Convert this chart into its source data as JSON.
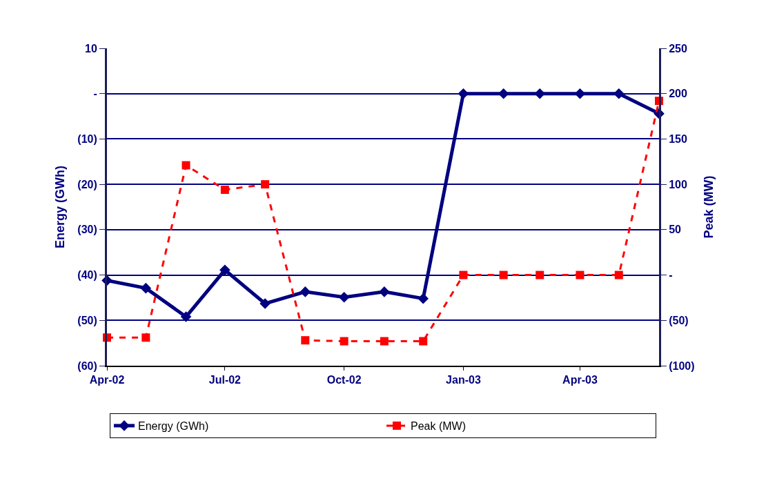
{
  "chart_data": {
    "type": "line",
    "ylabel": "Energy (GWh)",
    "y2label": "Peak (MW)",
    "x": [
      "2002-04",
      "2002-05",
      "2002-06",
      "2002-07",
      "2002-08",
      "2002-09",
      "2002-10",
      "2002-11",
      "2002-12",
      "2003-01",
      "2003-02",
      "2003-03",
      "2003-04",
      "2003-05",
      "2003-06"
    ],
    "series": [
      {
        "name": "Energy (GWh)",
        "color": "#000080",
        "marker": "diamond",
        "line_style": "solid",
        "values": [
          -41.2,
          -42.9,
          -49.2,
          -38.9,
          -46.3,
          -43.7,
          -44.9,
          -43.7,
          -45.2,
          0,
          0,
          0,
          0,
          0,
          -4.4
        ]
      },
      {
        "name": "Peak (MW)",
        "color": "#ff0000",
        "marker": "square",
        "line_style": "dashed",
        "axis": "y2",
        "values": [
          -69,
          -69,
          121,
          94,
          100,
          -72,
          -73,
          -73,
          -73,
          0,
          0,
          0,
          0,
          0,
          192
        ]
      }
    ],
    "xlim": [
      "2002-04",
      "2003-06"
    ],
    "xticks": [
      {
        "value": "2002-04",
        "label": "Apr-02"
      },
      {
        "value": "2002-07",
        "label": "Jul-02"
      },
      {
        "value": "2002-10",
        "label": "Oct-02"
      },
      {
        "value": "2003-01",
        "label": "Jan-03"
      },
      {
        "value": "2003-04",
        "label": "Apr-03"
      }
    ],
    "ylim": [
      -60,
      10
    ],
    "yticks": [
      10,
      {
        "value": 0,
        "label": "-"
      },
      {
        "value": -10,
        "label": "(10)"
      },
      {
        "value": -20,
        "label": "(20)"
      },
      {
        "value": -30,
        "label": "(30)"
      },
      {
        "value": -40,
        "label": "(40)"
      },
      {
        "value": -50,
        "label": "(50)"
      },
      {
        "value": -60,
        "label": "(60)"
      }
    ],
    "y2lim": [
      -100,
      250
    ],
    "y2ticks": [
      250,
      200,
      150,
      100,
      50,
      {
        "value": 0,
        "label": "-"
      },
      {
        "value": -50,
        "label": "(50)"
      },
      {
        "value": -100,
        "label": "(100)"
      }
    ],
    "grid": "y",
    "legend": "bottom"
  }
}
